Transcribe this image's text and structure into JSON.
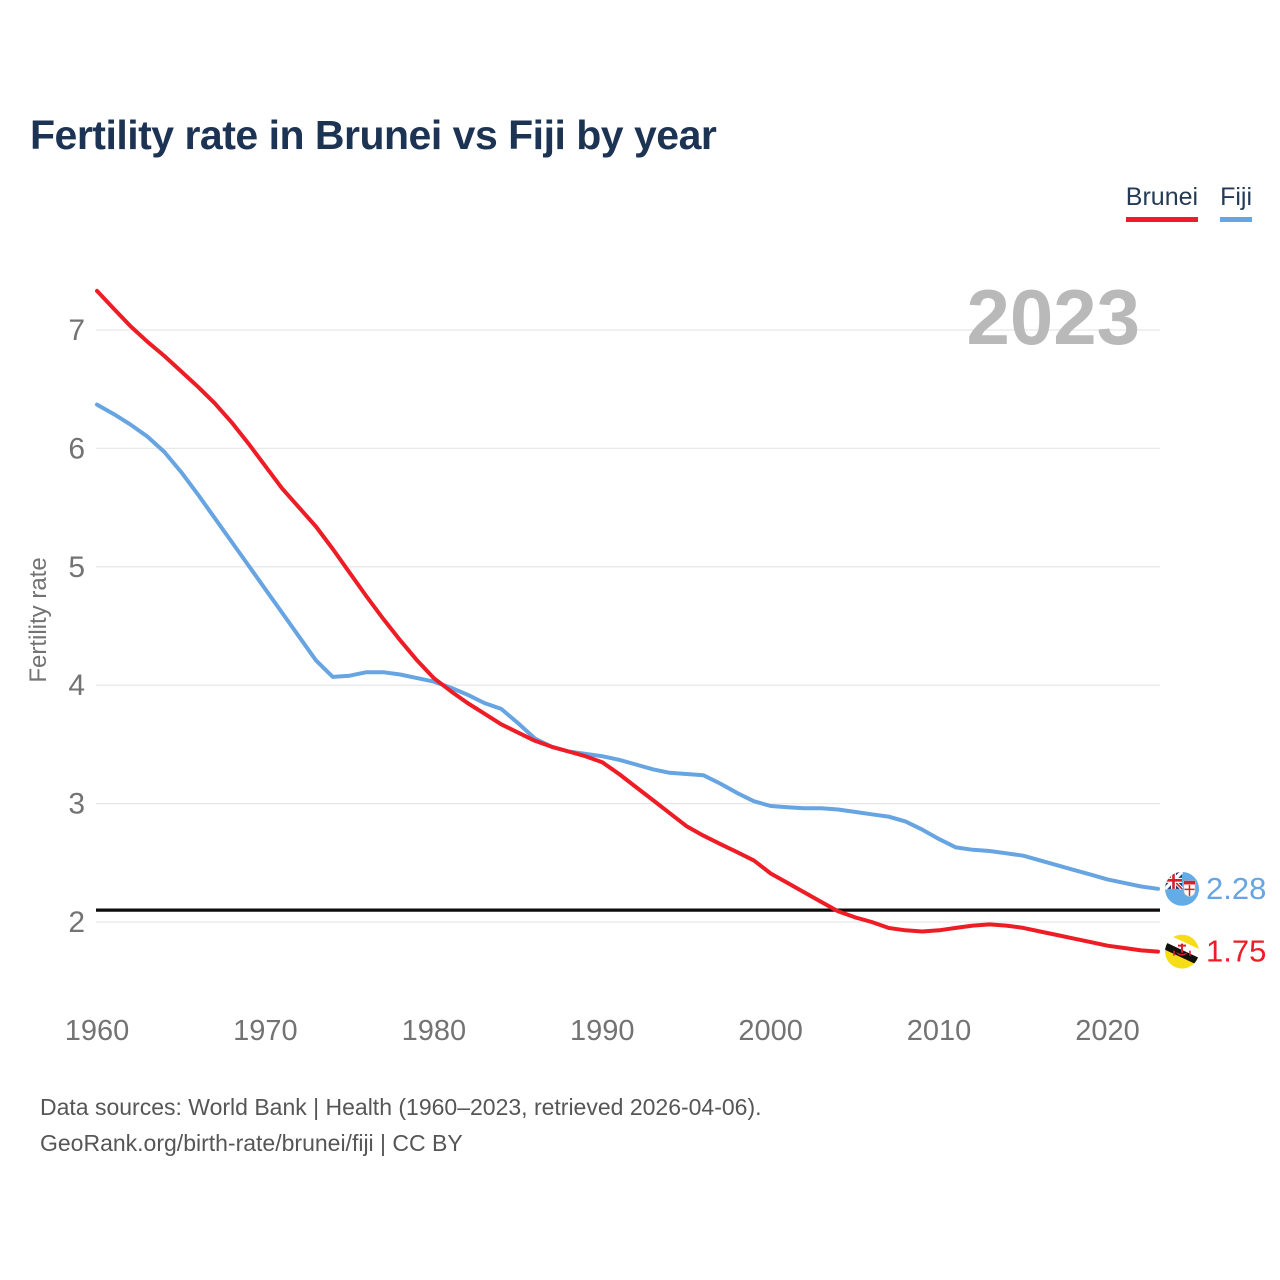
{
  "header": {
    "title": "Fertility rate in Brunei vs Fiji by year"
  },
  "legend": {
    "items": [
      {
        "label": "Brunei",
        "color": "#ee1c25"
      },
      {
        "label": "Fiji",
        "color": "#66a4e2"
      }
    ]
  },
  "watermark": "2023",
  "footer": {
    "line1": "Data sources: World Bank | Health (1960–2023, retrieved 2026-04-06).",
    "line2": "GeoRank.org/birth-rate/brunei/fiji | CC BY"
  },
  "colors": {
    "title_text": "#1c3353",
    "axis_text": "#737373",
    "gridline": "#e8e8e8",
    "reference_line": "#0d0d0d",
    "watermark": "#b9b9b9",
    "brunei_line": "#ee1c25",
    "fiji_line": "#66a4e2",
    "fiji_flag_bg": "#63ace5",
    "brunei_flag_bg": "#f7dd17"
  },
  "chart_data": {
    "type": "line",
    "title": "Fertility rate in Brunei vs Fiji by year",
    "xlabel": "",
    "ylabel": "Fertility rate",
    "x_ticks": [
      1960,
      1970,
      1980,
      1990,
      2000,
      2010,
      2020
    ],
    "y_ticks": [
      2,
      3,
      4,
      5,
      6,
      7
    ],
    "x_range": [
      1960,
      2023
    ],
    "ylim": [
      1.45,
      7.45
    ],
    "grid": "horizontal",
    "legend_position": "top-right",
    "reference_line": {
      "value": 2.1,
      "label": ""
    },
    "x": [
      1960,
      1961,
      1962,
      1963,
      1964,
      1965,
      1966,
      1967,
      1968,
      1969,
      1970,
      1971,
      1972,
      1973,
      1974,
      1975,
      1976,
      1977,
      1978,
      1979,
      1980,
      1981,
      1982,
      1983,
      1984,
      1985,
      1986,
      1987,
      1988,
      1989,
      1990,
      1991,
      1992,
      1993,
      1994,
      1995,
      1996,
      1997,
      1998,
      1999,
      2000,
      2001,
      2002,
      2003,
      2004,
      2005,
      2006,
      2007,
      2008,
      2009,
      2010,
      2011,
      2012,
      2013,
      2014,
      2015,
      2016,
      2017,
      2018,
      2019,
      2020,
      2021,
      2022,
      2023
    ],
    "series": [
      {
        "name": "Fiji",
        "color": "#66a4e2",
        "end_label": "2.28",
        "flag": "fiji",
        "values": [
          6.37,
          6.29,
          6.2,
          6.1,
          5.97,
          5.8,
          5.61,
          5.41,
          5.21,
          5.01,
          4.81,
          4.61,
          4.41,
          4.21,
          4.07,
          4.08,
          4.11,
          4.11,
          4.09,
          4.06,
          4.03,
          3.98,
          3.92,
          3.85,
          3.8,
          3.68,
          3.55,
          3.48,
          3.44,
          3.42,
          3.4,
          3.37,
          3.33,
          3.29,
          3.26,
          3.25,
          3.24,
          3.17,
          3.09,
          3.02,
          2.98,
          2.97,
          2.96,
          2.96,
          2.95,
          2.93,
          2.91,
          2.89,
          2.85,
          2.78,
          2.7,
          2.63,
          2.61,
          2.6,
          2.58,
          2.56,
          2.52,
          2.48,
          2.44,
          2.4,
          2.36,
          2.33,
          2.3,
          2.28
        ]
      },
      {
        "name": "Brunei",
        "color": "#ee1c25",
        "end_label": "1.75",
        "flag": "brunei",
        "values": [
          7.33,
          7.18,
          7.03,
          6.9,
          6.78,
          6.65,
          6.52,
          6.38,
          6.22,
          6.04,
          5.85,
          5.66,
          5.5,
          5.34,
          5.15,
          4.95,
          4.75,
          4.56,
          4.38,
          4.21,
          4.06,
          3.95,
          3.85,
          3.76,
          3.67,
          3.6,
          3.53,
          3.48,
          3.44,
          3.4,
          3.35,
          3.25,
          3.14,
          3.03,
          2.92,
          2.81,
          2.73,
          2.66,
          2.59,
          2.52,
          2.41,
          2.33,
          2.25,
          2.17,
          2.09,
          2.04,
          2.0,
          1.95,
          1.93,
          1.92,
          1.93,
          1.95,
          1.97,
          1.98,
          1.97,
          1.95,
          1.92,
          1.89,
          1.86,
          1.83,
          1.8,
          1.78,
          1.76,
          1.75
        ]
      }
    ]
  }
}
